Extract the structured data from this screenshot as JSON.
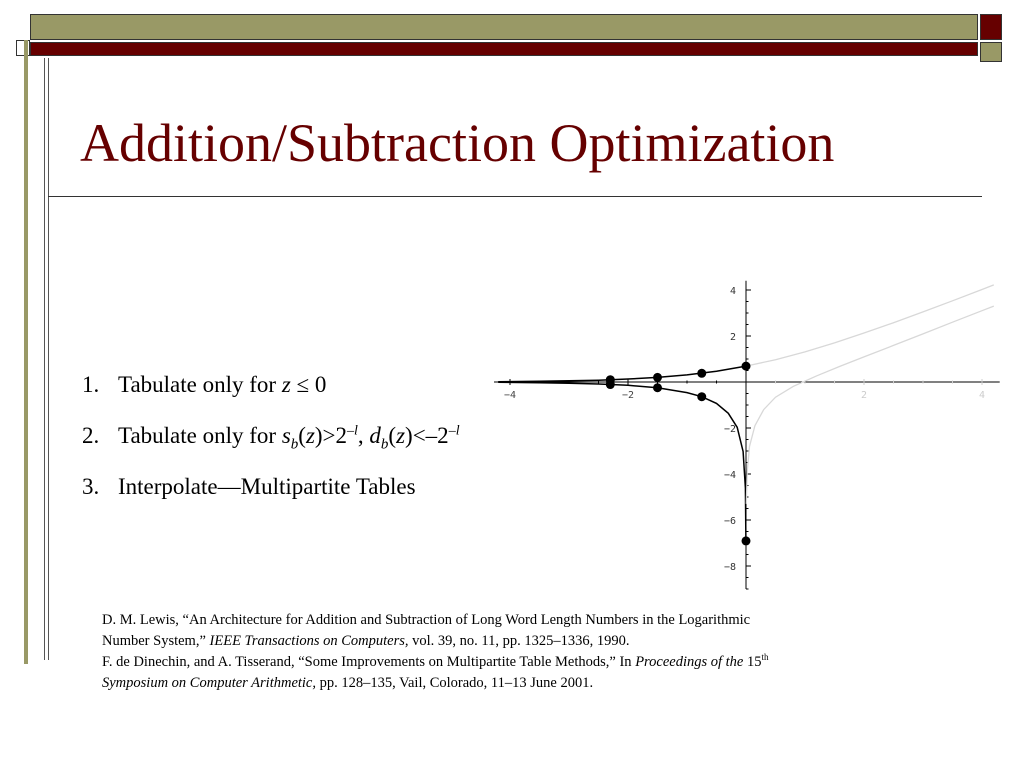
{
  "slide": {
    "title": "Addition/Subtraction Optimization",
    "colors": {
      "maroon": "#660000",
      "olive": "#999966"
    }
  },
  "list": [
    {
      "num": "1.",
      "text": "Tabulate only for",
      "expr": "z ≤ 0"
    },
    {
      "num": "2.",
      "text": "Tabulate only for",
      "expr": "s_b(z)>2^{-l}, d_b(z)<-2^{-l}"
    },
    {
      "num": "3.",
      "text": "Interpolate—Multipartite Tables"
    }
  ],
  "references": {
    "ref1": {
      "line_a": "D. M. Lewis, “An Architecture for Addition and Subtraction of Long Word Length Numbers in the Logarithmic",
      "line_b_plain": "Number System,”",
      "journal": "IEEE Transactions on Computers,",
      "details": "vol. 39, no. 11, pp. 1325–1336, 1990."
    },
    "ref2": {
      "line_a_plain": "F. de Dinechin, and A. Tisserand, “Some Improvements on Multipartite Table Methods,” In",
      "proc_a": "Proceedings of the",
      "num": "15",
      "sup": "th",
      "proc_b": "Symposium on Computer Arithmetic,",
      "details": "pp. 128–135, Vail, Colorado, 11–13 June 2001."
    }
  },
  "chart_data": {
    "type": "line",
    "xlim": [
      -4.3,
      4.3
    ],
    "ylim": [
      -9,
      4.4
    ],
    "x_ticks": [
      -4,
      -2,
      2,
      4
    ],
    "x_tick_labels": [
      "−4",
      "−2",
      "2",
      "4"
    ],
    "y_ticks": [
      4,
      2,
      -2,
      -4,
      -6,
      -8
    ],
    "y_tick_labels": [
      "4",
      "2",
      "−2",
      "−4",
      "−6",
      "−8"
    ],
    "series": [
      {
        "kind": "s_b",
        "domain": "z<=0",
        "color": "#000000",
        "x": [
          -4.2,
          -3.5,
          -3,
          -2.5,
          -2,
          -1.5,
          -1,
          -0.5,
          0
        ],
        "y": [
          0.015,
          0.03,
          0.05,
          0.08,
          0.13,
          0.2,
          0.31,
          0.47,
          0.69
        ]
      },
      {
        "kind": "s_b",
        "domain": "z>0",
        "color": "#d8d8d8",
        "x": [
          0,
          0.5,
          1,
          1.5,
          2,
          2.5,
          3,
          3.5,
          4,
          4.2
        ],
        "y": [
          0.69,
          0.97,
          1.31,
          1.7,
          2.13,
          2.58,
          3.05,
          3.53,
          4.02,
          4.22
        ]
      },
      {
        "kind": "d_b",
        "domain": "z<=0",
        "color": "#000000",
        "x": [
          -4.2,
          -3.5,
          -3,
          -2.5,
          -2,
          -1.5,
          -1,
          -0.75,
          -0.5,
          -0.3,
          -0.15,
          -0.05,
          -0.01,
          -0.001
        ],
        "y": [
          -0.015,
          -0.03,
          -0.05,
          -0.085,
          -0.145,
          -0.25,
          -0.46,
          -0.64,
          -0.93,
          -1.36,
          -1.97,
          -3.02,
          -4.61,
          -6.91
        ]
      },
      {
        "kind": "d_b",
        "domain": "z>0",
        "color": "#d8d8d8",
        "x": [
          0.005,
          0.02,
          0.06,
          0.15,
          0.3,
          0.5,
          0.8,
          1.2,
          1.6,
          2,
          2.5,
          3,
          3.5,
          4,
          4.2
        ],
        "y": [
          -5.3,
          -3.9,
          -2.8,
          -1.9,
          -1.2,
          -0.66,
          -0.19,
          0.27,
          0.69,
          1.09,
          1.59,
          2.09,
          2.6,
          3.1,
          3.3
        ]
      }
    ],
    "points": [
      {
        "x": -2.3,
        "y": 0.1
      },
      {
        "x": -1.5,
        "y": 0.2
      },
      {
        "x": -0.75,
        "y": 0.38
      },
      {
        "x": 0,
        "y": 0.69
      },
      {
        "x": -2.3,
        "y": -0.11
      },
      {
        "x": -1.5,
        "y": -0.25
      },
      {
        "x": -0.75,
        "y": -0.64
      },
      {
        "x": 0,
        "y": -6.91
      }
    ]
  }
}
